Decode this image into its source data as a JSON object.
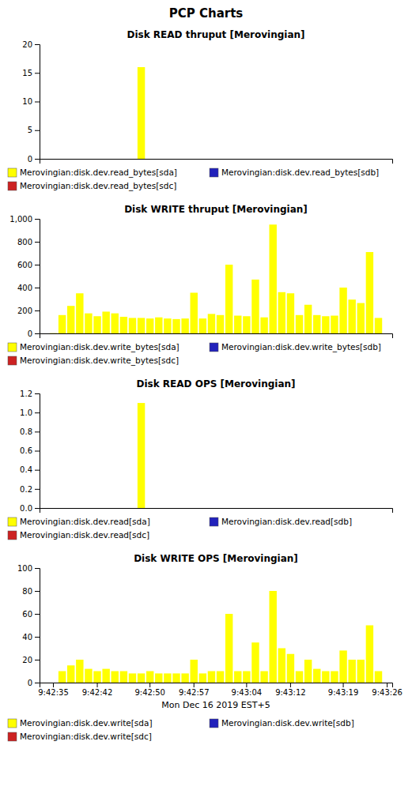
{
  "title": "PCP Charts",
  "chart_data": [
    {
      "type": "bar",
      "title": "Disk READ thruput [Merovingian]",
      "categories": [
        null,
        null,
        null,
        null,
        null,
        null,
        null,
        null,
        null,
        null,
        null,
        null,
        null,
        null,
        null,
        null,
        null,
        null,
        null,
        null,
        null,
        null,
        null,
        null,
        null,
        null,
        null,
        null,
        null,
        null,
        null,
        null,
        null,
        null,
        null,
        null,
        null,
        null,
        null,
        null
      ],
      "series": [
        {
          "name": "Merovingian:disk.dev.read_bytes[sda]",
          "color": "#ffff00",
          "values": [
            0,
            0,
            0,
            0,
            0,
            0,
            0,
            0,
            0,
            0,
            0,
            16,
            0,
            0,
            0,
            0,
            0,
            0,
            0,
            0,
            0,
            0,
            0,
            0,
            0,
            0,
            0,
            0,
            0,
            0,
            0,
            0,
            0,
            0,
            0,
            0,
            0,
            0,
            0,
            0
          ]
        },
        {
          "name": "Merovingian:disk.dev.read_bytes[sdb]",
          "color": "#2222bb",
          "values": [
            0,
            0,
            0,
            0,
            0,
            0,
            0,
            0,
            0,
            0,
            0,
            0,
            0,
            0,
            0,
            0,
            0,
            0,
            0,
            0,
            0,
            0,
            0,
            0,
            0,
            0,
            0,
            0,
            0,
            0,
            0,
            0,
            0,
            0,
            0,
            0,
            0,
            0,
            0,
            0
          ]
        },
        {
          "name": "Merovingian:disk.dev.read_bytes[sdc]",
          "color": "#cc2222",
          "values": [
            0,
            0,
            0,
            0,
            0,
            0,
            0,
            0,
            0,
            0,
            0,
            0,
            0,
            0,
            0,
            0,
            0,
            0,
            0,
            0,
            0,
            0,
            0,
            0,
            0,
            0,
            0,
            0,
            0,
            0,
            0,
            0,
            0,
            0,
            0,
            0,
            0,
            0,
            0,
            0
          ]
        }
      ],
      "ylim": [
        0,
        20
      ],
      "yticks": [
        0,
        5,
        10,
        15,
        20
      ],
      "grid": false
    },
    {
      "type": "bar",
      "title": "Disk WRITE thruput [Merovingian]",
      "categories": [
        null,
        null,
        null,
        null,
        null,
        null,
        null,
        null,
        null,
        null,
        null,
        null,
        null,
        null,
        null,
        null,
        null,
        null,
        null,
        null,
        null,
        null,
        null,
        null,
        null,
        null,
        null,
        null,
        null,
        null,
        null,
        null,
        null,
        null,
        null,
        null,
        null,
        null,
        null,
        null
      ],
      "series": [
        {
          "name": "Merovingian:disk.dev.write_bytes[sda]",
          "color": "#ffff00",
          "values": [
            0,
            2,
            160,
            240,
            350,
            175,
            150,
            190,
            175,
            145,
            135,
            135,
            130,
            140,
            130,
            125,
            130,
            355,
            130,
            170,
            160,
            600,
            155,
            150,
            470,
            140,
            950,
            360,
            350,
            160,
            250,
            160,
            150,
            155,
            400,
            295,
            265,
            710,
            135,
            0
          ]
        },
        {
          "name": "Merovingian:disk.dev.write_bytes[sdb]",
          "color": "#2222bb",
          "values": [
            0,
            0,
            0,
            0,
            0,
            0,
            0,
            0,
            0,
            0,
            0,
            0,
            0,
            0,
            0,
            0,
            0,
            0,
            0,
            0,
            0,
            0,
            0,
            0,
            0,
            0,
            0,
            0,
            0,
            0,
            0,
            0,
            0,
            0,
            0,
            0,
            0,
            0,
            0,
            0
          ]
        },
        {
          "name": "Merovingian:disk.dev.write_bytes[sdc]",
          "color": "#cc2222",
          "values": [
            0,
            0,
            0,
            0,
            0,
            0,
            0,
            0,
            0,
            0,
            0,
            0,
            0,
            0,
            0,
            0,
            0,
            0,
            0,
            0,
            0,
            0,
            0,
            0,
            0,
            0,
            0,
            0,
            0,
            0,
            0,
            0,
            0,
            0,
            0,
            0,
            0,
            0,
            0,
            0
          ]
        }
      ],
      "ylim": [
        0,
        1000
      ],
      "yticks": [
        0,
        200,
        400,
        600,
        800,
        {
          "value": 1000,
          "label": "1,000"
        }
      ],
      "grid": false
    },
    {
      "type": "bar",
      "title": "Disk READ OPS [Merovingian]",
      "categories": [
        null,
        null,
        null,
        null,
        null,
        null,
        null,
        null,
        null,
        null,
        null,
        null,
        null,
        null,
        null,
        null,
        null,
        null,
        null,
        null,
        null,
        null,
        null,
        null,
        null,
        null,
        null,
        null,
        null,
        null,
        null,
        null,
        null,
        null,
        null,
        null,
        null,
        null,
        null,
        null
      ],
      "series": [
        {
          "name": "Merovingian:disk.dev.read[sda]",
          "color": "#ffff00",
          "values": [
            0,
            0,
            0,
            0,
            0,
            0,
            0,
            0,
            0,
            0,
            0,
            1.1,
            0,
            0,
            0,
            0,
            0,
            0,
            0,
            0,
            0,
            0,
            0,
            0,
            0,
            0,
            0,
            0,
            0,
            0,
            0,
            0,
            0,
            0,
            0,
            0,
            0,
            0,
            0,
            0
          ]
        },
        {
          "name": "Merovingian:disk.dev.read[sdb]",
          "color": "#2222bb",
          "values": [
            0,
            0,
            0,
            0,
            0,
            0,
            0,
            0,
            0,
            0,
            0,
            0,
            0,
            0,
            0,
            0,
            0,
            0,
            0,
            0,
            0,
            0,
            0,
            0,
            0,
            0,
            0,
            0,
            0,
            0,
            0,
            0,
            0,
            0,
            0,
            0,
            0,
            0,
            0,
            0
          ]
        },
        {
          "name": "Merovingian:disk.dev.read[sdc]",
          "color": "#cc2222",
          "values": [
            0,
            0,
            0,
            0,
            0,
            0,
            0,
            0,
            0,
            0,
            0,
            0,
            0,
            0,
            0,
            0,
            0,
            0,
            0,
            0,
            0,
            0,
            0,
            0,
            0,
            0,
            0,
            0,
            0,
            0,
            0,
            0,
            0,
            0,
            0,
            0,
            0,
            0,
            0,
            0
          ]
        }
      ],
      "ylim": [
        0,
        1.2
      ],
      "yticks": [
        {
          "value": 0,
          "label": "0.0"
        },
        0.2,
        0.4,
        0.6,
        0.8,
        {
          "value": 1.0,
          "label": "1.0"
        },
        1.2
      ],
      "grid": false
    },
    {
      "type": "bar",
      "title": "Disk WRITE OPS [Merovingian]",
      "categories": [
        null,
        "9:42:35",
        null,
        null,
        null,
        null,
        "9:42:42",
        null,
        null,
        null,
        null,
        null,
        "9:42:50",
        null,
        null,
        null,
        null,
        "9:42:57",
        null,
        null,
        null,
        null,
        null,
        "9:43:04",
        null,
        null,
        null,
        null,
        "9:43:12",
        null,
        null,
        null,
        null,
        null,
        "9:43:19",
        null,
        null,
        null,
        null,
        "9:43:26"
      ],
      "series": [
        {
          "name": "Merovingian:disk.dev.write[sda]",
          "color": "#ffff00",
          "values": [
            0,
            0,
            10,
            15,
            20,
            12,
            10,
            12,
            10,
            10,
            8,
            8,
            10,
            8,
            8,
            8,
            8,
            20,
            8,
            10,
            10,
            60,
            10,
            10,
            35,
            10,
            80,
            30,
            25,
            10,
            20,
            12,
            10,
            10,
            28,
            20,
            20,
            50,
            10,
            0
          ]
        },
        {
          "name": "Merovingian:disk.dev.write[sdb]",
          "color": "#2222bb",
          "values": [
            0,
            0,
            0,
            0,
            0,
            0,
            0,
            0,
            0,
            0,
            0,
            0,
            0,
            0,
            0,
            0,
            0,
            0,
            0,
            0,
            0,
            0,
            0,
            0,
            0,
            0,
            0,
            0,
            0,
            0,
            0,
            0,
            0,
            0,
            0,
            0,
            0,
            0,
            0,
            0
          ]
        },
        {
          "name": "Merovingian:disk.dev.write[sdc]",
          "color": "#cc2222",
          "values": [
            0,
            0,
            0,
            0,
            0,
            0,
            0,
            0,
            0,
            0,
            0,
            0,
            0,
            0,
            0,
            0,
            0,
            0,
            0,
            0,
            0,
            0,
            0,
            0,
            0,
            0,
            0,
            0,
            0,
            0,
            0,
            0,
            0,
            0,
            0,
            0,
            0,
            0,
            0,
            0
          ]
        }
      ],
      "ylim": [
        0,
        100
      ],
      "yticks": [
        0,
        20,
        40,
        60,
        80,
        100
      ],
      "grid": false,
      "xlabel": "Mon Dec 16 2019 EST+5"
    }
  ]
}
